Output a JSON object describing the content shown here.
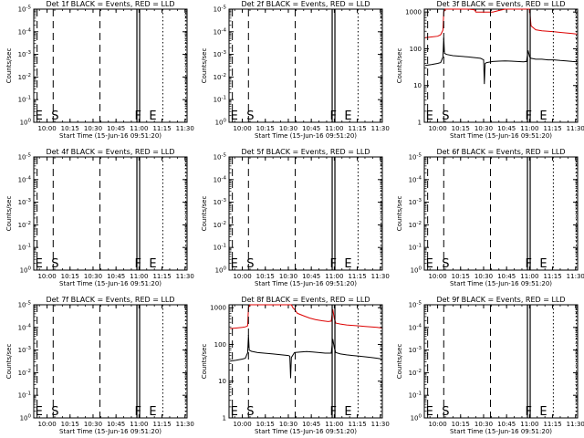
{
  "chart_data": [
    {
      "det": "1f",
      "title": "Det 1f BLACK = Events, RED = LLD",
      "ylabel": "Counts/sec",
      "xlabel": "Start Time (15-Jun-16 09:51:20)",
      "type": "line",
      "scale": "log",
      "ytick_labels": [
        "10^0",
        "10^-1",
        "10^-2",
        "10^-3",
        "10^-4",
        "10^-5"
      ],
      "xtick_labels": [
        "10:00",
        "10:15",
        "10:30",
        "10:45",
        "11:00",
        "11:15",
        "11:30"
      ],
      "x_range_min": [
        51.33,
        151.33
      ],
      "markers": [
        {
          "label": "E",
          "min": 53.5,
          "style": "dashed"
        },
        {
          "label": "S",
          "min": 64.0,
          "style": "dashed"
        },
        {
          "label": "",
          "min": 94.5,
          "style": "dashed"
        },
        {
          "label": "F",
          "min": 119.5,
          "style": "double"
        },
        {
          "label": "E",
          "min": 135.5,
          "style": "dotted"
        },
        {
          "label": "",
          "min": 150.5,
          "style": "dotted"
        }
      ],
      "series": []
    },
    {
      "det": "2f",
      "title": "Det 2f BLACK = Events, RED = LLD",
      "ylabel": "Counts/sec",
      "xlabel": "Start Time (15-Jun-16 09:51:20)",
      "type": "line",
      "scale": "log",
      "ytick_labels": [
        "10^0",
        "10^-1",
        "10^-2",
        "10^-3",
        "10^-4",
        "10^-5"
      ],
      "xtick_labels": [
        "10:00",
        "10:15",
        "10:30",
        "10:45",
        "11:00",
        "11:15",
        "11:30"
      ],
      "x_range_min": [
        51.33,
        151.33
      ],
      "markers": [
        {
          "label": "E",
          "min": 53.5,
          "style": "dashed"
        },
        {
          "label": "S",
          "min": 64.0,
          "style": "dashed"
        },
        {
          "label": "",
          "min": 94.5,
          "style": "dashed"
        },
        {
          "label": "F",
          "min": 119.5,
          "style": "double"
        },
        {
          "label": "E",
          "min": 135.5,
          "style": "dotted"
        },
        {
          "label": "",
          "min": 150.5,
          "style": "dotted"
        }
      ],
      "series": []
    },
    {
      "det": "3f",
      "title": "Det 3f BLACK = Events, RED = LLD",
      "ylabel": "Counts/sec",
      "xlabel": "Start Time (15-Jun-16 09:51:20)",
      "type": "line",
      "scale": "log",
      "ytick_labels": [
        "1000",
        "100",
        "10",
        "1"
      ],
      "xtick_labels": [
        "10:00",
        "10:15",
        "10:30",
        "10:45",
        "11:00",
        "11:15",
        "11:30"
      ],
      "x_range_min": [
        51.33,
        151.33
      ],
      "ylim": [
        1,
        1200
      ],
      "markers": [
        {
          "label": "E",
          "min": 53.5,
          "style": "dashed"
        },
        {
          "label": "S",
          "min": 64.0,
          "style": "dashed"
        },
        {
          "label": "",
          "min": 94.5,
          "style": "dashed"
        },
        {
          "label": "F",
          "min": 119.5,
          "style": "double"
        },
        {
          "label": "E",
          "min": 135.5,
          "style": "dotted"
        },
        {
          "label": "",
          "min": 150.5,
          "style": "dotted"
        }
      ],
      "series": [
        {
          "color": "#dd0000",
          "x": [
            52,
            56,
            60,
            62,
            63.5,
            64,
            65,
            66,
            67,
            68,
            80,
            84,
            85,
            90,
            96,
            100,
            104,
            108,
            112,
            116,
            118,
            119,
            120,
            121,
            124,
            128,
            132,
            136,
            140,
            144,
            148,
            151
          ],
          "y": [
            200,
            210,
            220,
            240,
            320,
            1000,
            1200,
            1200,
            1200,
            1200,
            1200,
            1150,
            1000,
            1000,
            1000,
            1100,
            1200,
            1200,
            1200,
            1200,
            1200,
            1200,
            1200,
            420,
            330,
            310,
            300,
            290,
            280,
            270,
            260,
            250
          ]
        },
        {
          "color": "#000000",
          "x": [
            52,
            56,
            60,
            62,
            63.5,
            64,
            64.5,
            66,
            70,
            80,
            88,
            90,
            90.5,
            91,
            92,
            96,
            100,
            104,
            108,
            112,
            116,
            118,
            119,
            120,
            121,
            124,
            128,
            132,
            136,
            140,
            144,
            148,
            151
          ],
          "y": [
            35,
            37,
            40,
            42,
            60,
            200,
            75,
            70,
            65,
            60,
            55,
            50,
            11,
            40,
            42,
            45,
            46,
            47,
            46,
            45,
            44,
            45,
            90,
            60,
            55,
            52,
            52,
            50,
            50,
            48,
            47,
            45,
            44
          ]
        }
      ]
    },
    {
      "det": "4f",
      "title": "Det 4f BLACK = Events, RED = LLD",
      "ylabel": "Counts/sec",
      "xlabel": "Start Time (15-Jun-16 09:51:20)",
      "type": "line",
      "scale": "log",
      "ytick_labels": [
        "10^0",
        "10^-1",
        "10^-2",
        "10^-3",
        "10^-4",
        "10^-5"
      ],
      "xtick_labels": [
        "10:00",
        "10:15",
        "10:30",
        "10:45",
        "11:00",
        "11:15",
        "11:30"
      ],
      "x_range_min": [
        51.33,
        151.33
      ],
      "markers": [
        {
          "label": "E",
          "min": 53.5,
          "style": "dashed"
        },
        {
          "label": "S",
          "min": 64.0,
          "style": "dashed"
        },
        {
          "label": "",
          "min": 94.5,
          "style": "dashed"
        },
        {
          "label": "F",
          "min": 119.5,
          "style": "double"
        },
        {
          "label": "E",
          "min": 135.5,
          "style": "dotted"
        },
        {
          "label": "",
          "min": 150.5,
          "style": "dotted"
        }
      ],
      "series": []
    },
    {
      "det": "5f",
      "title": "Det 5f BLACK = Events, RED = LLD",
      "ylabel": "Counts/sec",
      "xlabel": "Start Time (15-Jun-16 09:51:20)",
      "type": "line",
      "scale": "log",
      "ytick_labels": [
        "10^0",
        "10^-1",
        "10^-2",
        "10^-3",
        "10^-4",
        "10^-5"
      ],
      "xtick_labels": [
        "10:00",
        "10:15",
        "10:30",
        "10:45",
        "11:00",
        "11:15",
        "11:30"
      ],
      "x_range_min": [
        51.33,
        151.33
      ],
      "markers": [
        {
          "label": "E",
          "min": 53.5,
          "style": "dashed"
        },
        {
          "label": "S",
          "min": 64.0,
          "style": "dashed"
        },
        {
          "label": "",
          "min": 94.5,
          "style": "dashed"
        },
        {
          "label": "F",
          "min": 119.5,
          "style": "double"
        },
        {
          "label": "E",
          "min": 135.5,
          "style": "dotted"
        },
        {
          "label": "",
          "min": 150.5,
          "style": "dotted"
        }
      ],
      "series": []
    },
    {
      "det": "6f",
      "title": "Det 6f BLACK = Events, RED = LLD",
      "ylabel": "Counts/sec",
      "xlabel": "Start Time (15-Jun-16 09:51:20)",
      "type": "line",
      "scale": "log",
      "ytick_labels": [
        "10^0",
        "10^-1",
        "10^-2",
        "10^-3",
        "10^-4",
        "10^-5"
      ],
      "xtick_labels": [
        "10:00",
        "10:15",
        "10:30",
        "10:45",
        "11:00",
        "11:15",
        "11:30"
      ],
      "x_range_min": [
        51.33,
        151.33
      ],
      "markers": [
        {
          "label": "E",
          "min": 53.5,
          "style": "dashed"
        },
        {
          "label": "S",
          "min": 64.0,
          "style": "dashed"
        },
        {
          "label": "",
          "min": 94.5,
          "style": "dashed"
        },
        {
          "label": "F",
          "min": 119.5,
          "style": "double"
        },
        {
          "label": "E",
          "min": 135.5,
          "style": "dotted"
        },
        {
          "label": "",
          "min": 150.5,
          "style": "dotted"
        }
      ],
      "series": []
    },
    {
      "det": "7f",
      "title": "Det 7f BLACK = Events, RED = LLD",
      "ylabel": "Counts/sec",
      "xlabel": "Start Time (15-Jun-16 09:51:20)",
      "type": "line",
      "scale": "log",
      "ytick_labels": [
        "10^0",
        "10^-1",
        "10^-2",
        "10^-3",
        "10^-4",
        "10^-5"
      ],
      "xtick_labels": [
        "10:00",
        "10:15",
        "10:30",
        "10:45",
        "11:00",
        "11:15",
        "11:30"
      ],
      "x_range_min": [
        51.33,
        151.33
      ],
      "markers": [
        {
          "label": "E",
          "min": 53.5,
          "style": "dashed"
        },
        {
          "label": "S",
          "min": 64.0,
          "style": "dashed"
        },
        {
          "label": "",
          "min": 94.5,
          "style": "dashed"
        },
        {
          "label": "F",
          "min": 119.5,
          "style": "double"
        },
        {
          "label": "E",
          "min": 135.5,
          "style": "dotted"
        },
        {
          "label": "",
          "min": 150.5,
          "style": "dotted"
        }
      ],
      "series": []
    },
    {
      "det": "8f",
      "title": "Det 8f BLACK = Events, RED = LLD",
      "ylabel": "Counts/sec",
      "xlabel": "Start Time (15-Jun-16 09:51:20)",
      "type": "line",
      "scale": "log",
      "ytick_labels": [
        "1000",
        "100",
        "10",
        "1"
      ],
      "xtick_labels": [
        "10:00",
        "10:15",
        "10:30",
        "10:45",
        "11:00",
        "11:15",
        "11:30"
      ],
      "x_range_min": [
        51.33,
        151.33
      ],
      "ylim": [
        1,
        1200
      ],
      "markers": [
        {
          "label": "E",
          "min": 53.5,
          "style": "dashed"
        },
        {
          "label": "S",
          "min": 64.0,
          "style": "dashed"
        },
        {
          "label": "",
          "min": 94.5,
          "style": "dashed"
        },
        {
          "label": "F",
          "min": 119.5,
          "style": "double"
        },
        {
          "label": "E",
          "min": 135.5,
          "style": "dotted"
        },
        {
          "label": "",
          "min": 150.5,
          "style": "dotted"
        }
      ],
      "series": [
        {
          "color": "#dd0000",
          "x": [
            52,
            56,
            60,
            62,
            63.5,
            64,
            65,
            68,
            80,
            92,
            93,
            94,
            96,
            100,
            104,
            108,
            112,
            116,
            118,
            119,
            120,
            121,
            124,
            128,
            132,
            136,
            140,
            144,
            148,
            151
          ],
          "y": [
            270,
            280,
            290,
            300,
            320,
            1000,
            1200,
            1200,
            1200,
            1200,
            1000,
            900,
            700,
            600,
            520,
            470,
            440,
            420,
            430,
            900,
            500,
            380,
            360,
            340,
            330,
            320,
            310,
            300,
            290,
            280
          ]
        },
        {
          "color": "#000000",
          "x": [
            52,
            56,
            60,
            62,
            63.5,
            64,
            64.5,
            66,
            70,
            80,
            90,
            91,
            91.5,
            92,
            94,
            98,
            102,
            106,
            110,
            114,
            118,
            119,
            120,
            121,
            124,
            128,
            132,
            136,
            140,
            144,
            148,
            151
          ],
          "y": [
            35,
            37,
            40,
            42,
            60,
            180,
            70,
            65,
            60,
            55,
            50,
            48,
            12,
            44,
            60,
            62,
            64,
            62,
            60,
            58,
            58,
            140,
            80,
            60,
            55,
            52,
            50,
            48,
            46,
            44,
            42,
            40
          ]
        }
      ]
    },
    {
      "det": "9f",
      "title": "Det 9f BLACK = Events, RED = LLD",
      "ylabel": "Counts/sec",
      "xlabel": "Start Time (15-Jun-16 09:51:20)",
      "type": "line",
      "scale": "log",
      "ytick_labels": [
        "10^0",
        "10^-1",
        "10^-2",
        "10^-3",
        "10^-4",
        "10^-5"
      ],
      "xtick_labels": [
        "10:00",
        "10:15",
        "10:30",
        "10:45",
        "11:00",
        "11:15",
        "11:30"
      ],
      "x_range_min": [
        51.33,
        151.33
      ],
      "markers": [
        {
          "label": "E",
          "min": 53.5,
          "style": "dashed"
        },
        {
          "label": "S",
          "min": 64.0,
          "style": "dashed"
        },
        {
          "label": "",
          "min": 94.5,
          "style": "dashed"
        },
        {
          "label": "F",
          "min": 119.5,
          "style": "double"
        },
        {
          "label": "E",
          "min": 135.5,
          "style": "dotted"
        },
        {
          "label": "",
          "min": 150.5,
          "style": "dotted"
        }
      ],
      "series": []
    }
  ]
}
